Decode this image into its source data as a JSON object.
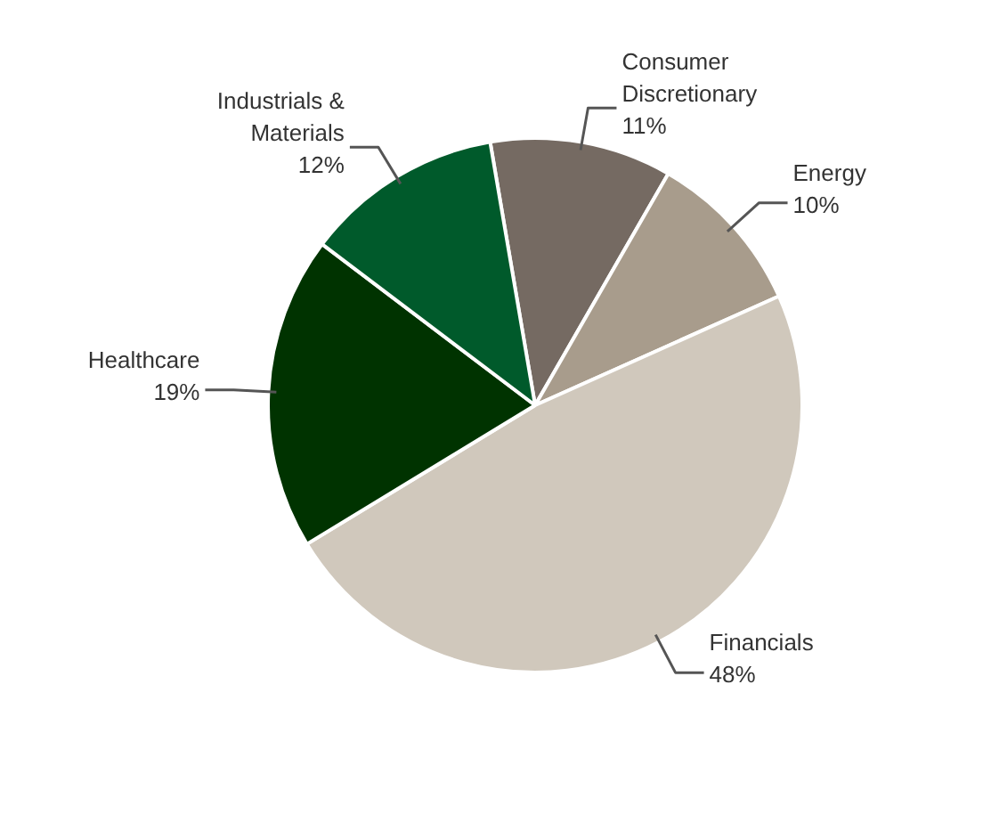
{
  "chart_data": {
    "type": "pie",
    "categories": [
      "Consumer Discretionary",
      "Energy",
      "Financials",
      "Healthcare",
      "Industrials & Materials"
    ],
    "values": [
      11,
      10,
      48,
      19,
      12
    ],
    "colors": [
      "#756a62",
      "#a89c8c",
      "#d0c8bc",
      "#003300",
      "#005a2b"
    ],
    "value_labels": [
      "11%",
      "10%",
      "48%",
      "19%",
      "12%"
    ]
  }
}
